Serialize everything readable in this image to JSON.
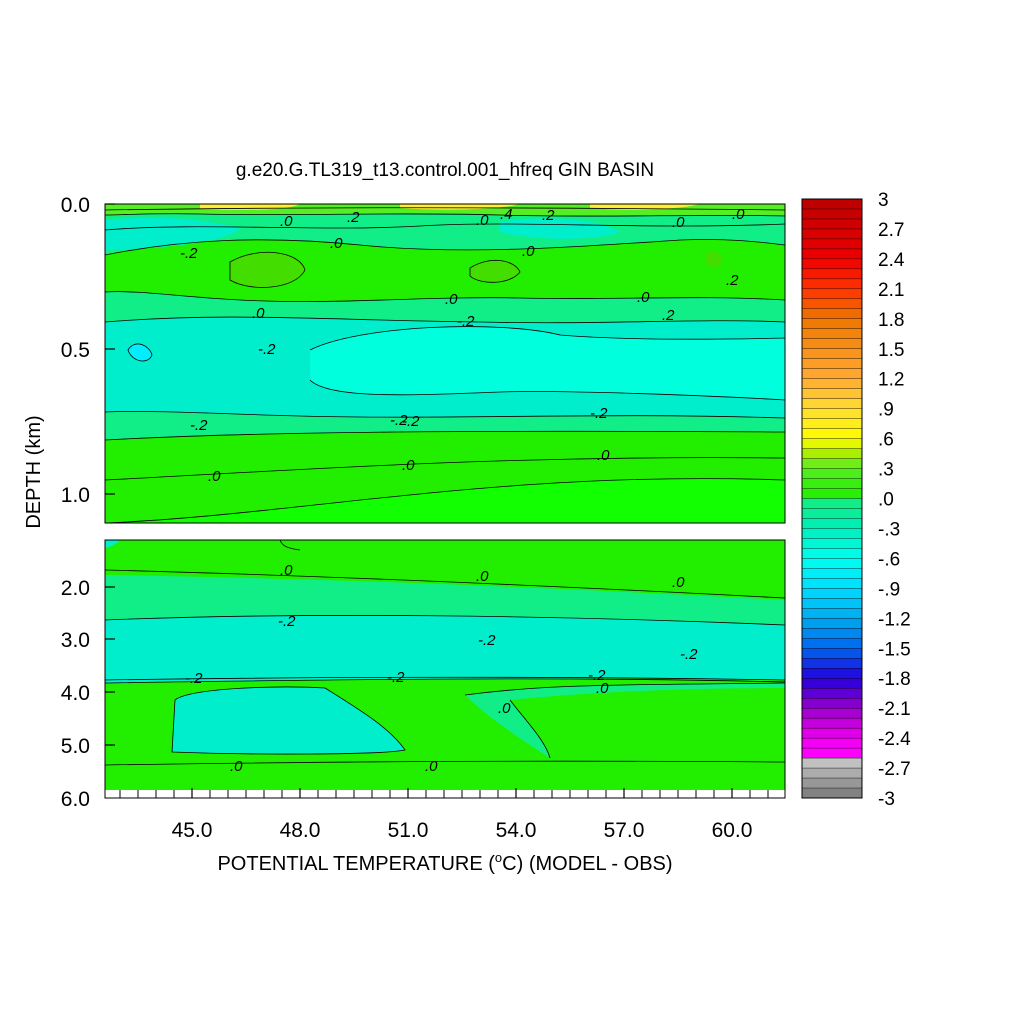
{
  "chart_data": {
    "type": "heatmap",
    "title": "g.e20.G.TL319_t13.control.001_hfreq GIN BASIN",
    "xlabel_parts": [
      "POTENTIAL TEMPERATURE (",
      "o",
      "C) (MODEL - OBS)"
    ],
    "ylabel": "DEPTH (km)",
    "x_ticks": [
      "45.0",
      "48.0",
      "51.0",
      "54.0",
      "57.0",
      "60.0"
    ],
    "y_ticks_upper": [
      "0.0",
      "0.5",
      "1.0"
    ],
    "y_ticks_lower": [
      "2.0",
      "3.0",
      "4.0",
      "5.0",
      "6.0"
    ],
    "colorbar_labels": [
      "3",
      "2.7",
      "2.4",
      "2.1",
      "1.8",
      "1.5",
      "1.2",
      ".9",
      ".6",
      ".3",
      ".0",
      "-.3",
      "-.6",
      "-.9",
      "-1.2",
      "-1.5",
      "-1.8",
      "-2.1",
      "-2.4",
      "-2.7",
      "-3"
    ],
    "contour_labels": [
      ".0",
      ".2",
      ".0",
      ".4",
      ".2",
      ".0",
      ".0",
      ".2",
      "-.2",
      ".0",
      ".0",
      ".2",
      ".0",
      "-.2",
      ".0",
      "-.2",
      "-.2",
      "-.2",
      "-.2",
      "-.2",
      ".0",
      ".0",
      ".0",
      ".0",
      ".0",
      ".0",
      "-.2",
      "-.2",
      "-.2",
      "-.2",
      "-.2",
      "-.2",
      ".0",
      ".0",
      ".0",
      ".0"
    ],
    "palette": {
      "near_zero": "#22ee00",
      "slightly_positive": "#55ee22",
      "warm_surface": "#ffee33",
      "slightly_negative": "#11ee88",
      "negative": "#00eecc",
      "more_negative": "#00ffdd",
      "deep_negative": "#00eeff"
    }
  }
}
